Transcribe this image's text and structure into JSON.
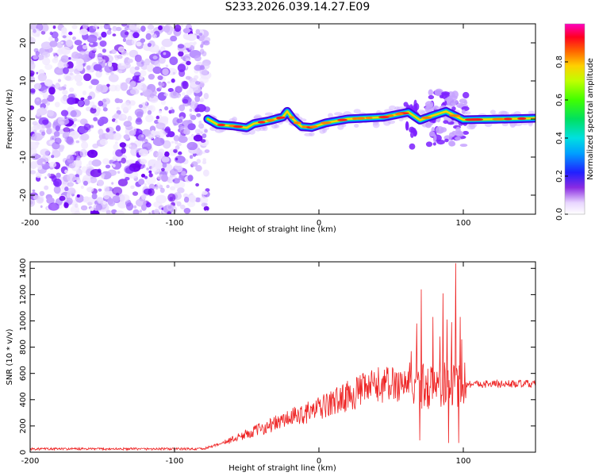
{
  "title": "S233.2026.039.14.27.E09",
  "chart_data": [
    {
      "type": "heatmap",
      "name": "spectrogram",
      "xlabel": "Height of straight line (km)",
      "ylabel": "Frequency (Hz)",
      "xlim": [
        -200,
        150
      ],
      "ylim": [
        -25,
        25
      ],
      "xticks": [
        "-200",
        "-100",
        "0",
        "100"
      ],
      "xtick_values": [
        -200,
        -100,
        0,
        100
      ],
      "yticks": [
        "-20",
        "-10",
        "0",
        "10",
        "20"
      ],
      "ytick_values": [
        -20,
        -10,
        0,
        10,
        20
      ],
      "noise_region_end_km": -77,
      "ridge": [
        {
          "x": -77,
          "y": 0.0
        },
        {
          "x": -70,
          "y": -1.5
        },
        {
          "x": -60,
          "y": -1.8
        },
        {
          "x": -50,
          "y": -2.3
        },
        {
          "x": -45,
          "y": -1.2
        },
        {
          "x": -35,
          "y": -0.5
        },
        {
          "x": -25,
          "y": 0.5
        },
        {
          "x": -22,
          "y": 2.0
        },
        {
          "x": -18,
          "y": 0.0
        },
        {
          "x": -12,
          "y": -2.0
        },
        {
          "x": -5,
          "y": -2.2
        },
        {
          "x": 5,
          "y": -1.0
        },
        {
          "x": 20,
          "y": 0.0
        },
        {
          "x": 45,
          "y": 0.5
        },
        {
          "x": 62,
          "y": 1.8
        },
        {
          "x": 70,
          "y": -0.3
        },
        {
          "x": 78,
          "y": 0.8
        },
        {
          "x": 88,
          "y": 2.0
        },
        {
          "x": 100,
          "y": -0.2
        },
        {
          "x": 130,
          "y": 0.0
        },
        {
          "x": 150,
          "y": 0.2
        }
      ],
      "colorbar": {
        "label": "Normalized spectral amplitude",
        "ticks": [
          "0.0",
          "0.2",
          "0.4",
          "0.6",
          "0.8"
        ],
        "tick_values": [
          0.0,
          0.2,
          0.4,
          0.6,
          0.8
        ],
        "range": [
          0,
          1
        ]
      }
    },
    {
      "type": "line",
      "name": "snr",
      "xlabel": "Height of straight line (km)",
      "ylabel": "SNR (10 * v/v)",
      "xlim": [
        -200,
        150
      ],
      "ylim": [
        0,
        1450
      ],
      "xticks": [
        "-200",
        "-100",
        "0",
        "100"
      ],
      "xtick_values": [
        -200,
        -100,
        0,
        100
      ],
      "yticks": [
        "0",
        "200",
        "400",
        "600",
        "800",
        "1000",
        "1200",
        "1400"
      ],
      "ytick_values": [
        0,
        200,
        400,
        600,
        800,
        1000,
        1200,
        1400
      ],
      "color": "#ee2222",
      "envelope": [
        {
          "x": -200,
          "y": 25
        },
        {
          "x": -80,
          "y": 25
        },
        {
          "x": -64,
          "y": 80
        },
        {
          "x": -40,
          "y": 180
        },
        {
          "x": -20,
          "y": 260
        },
        {
          "x": 0,
          "y": 330
        },
        {
          "x": 20,
          "y": 430
        },
        {
          "x": 40,
          "y": 510
        },
        {
          "x": 60,
          "y": 530
        },
        {
          "x": 75,
          "y": 500
        },
        {
          "x": 100,
          "y": 520
        },
        {
          "x": 150,
          "y": 520
        }
      ],
      "spikes": [
        {
          "x": 64,
          "y": 770
        },
        {
          "x": 68,
          "y": 980
        },
        {
          "x": 70,
          "y": 90
        },
        {
          "x": 71,
          "y": 1240
        },
        {
          "x": 79,
          "y": 1030
        },
        {
          "x": 84,
          "y": 880
        },
        {
          "x": 86,
          "y": 1210
        },
        {
          "x": 89,
          "y": 1010
        },
        {
          "x": 90,
          "y": 70
        },
        {
          "x": 92,
          "y": 990
        },
        {
          "x": 95,
          "y": 1440
        },
        {
          "x": 97,
          "y": 70
        },
        {
          "x": 98,
          "y": 1030
        },
        {
          "x": 99,
          "y": 860
        }
      ]
    }
  ]
}
